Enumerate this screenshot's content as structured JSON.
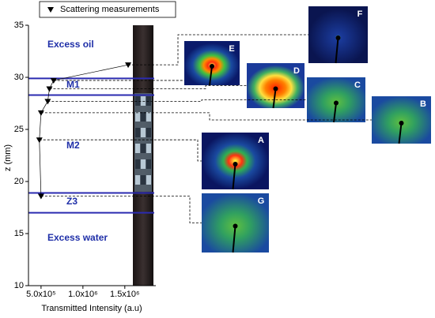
{
  "chart_data": {
    "type": "scatter",
    "xlabel": "Transmitted Intensity (a.u)",
    "ylabel": "z (mm)",
    "xlim": [
      350000,
      1870000
    ],
    "xticks": [
      {
        "value": 500000,
        "label": "5.0x10⁵"
      },
      {
        "value": 1000000,
        "label": "1.0x10⁶"
      },
      {
        "value": 1500000,
        "label": "1.5x10⁶"
      }
    ],
    "ylim": [
      10,
      35
    ],
    "yticks": [
      10,
      15,
      20,
      25,
      30,
      35
    ],
    "series": [
      {
        "name": "Scattering measurements",
        "color": "#000000",
        "x": [
          1540000,
          650000,
          600000,
          580000,
          500000,
          480000,
          500000
        ],
        "values": [
          31.2,
          29.7,
          28.9,
          27.7,
          26.6,
          24.0,
          18.6
        ]
      }
    ],
    "boundaries": [
      29.9,
      28.3,
      18.9,
      17.0
    ],
    "boundary_color": "#2b2bb0",
    "regions": [
      "Excess oil",
      "M1",
      "M2",
      "Z3",
      "Excess water"
    ],
    "panels": [
      "F",
      "E",
      "D",
      "C",
      "B",
      "A",
      "G"
    ]
  }
}
